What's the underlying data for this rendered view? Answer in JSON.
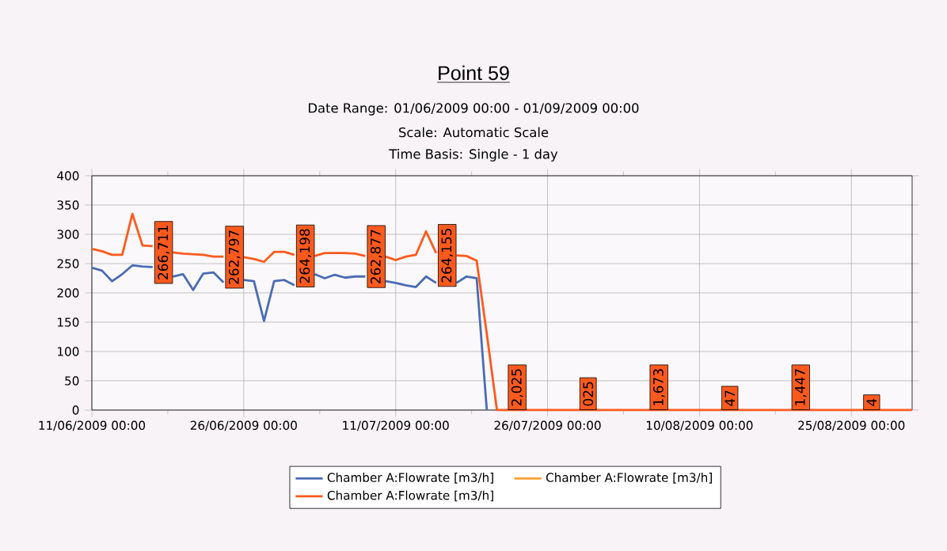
{
  "chart_data": {
    "type": "line",
    "title": "Point 59",
    "subtitle": "Date Range: 01/06/2009 00:00 - 01/09/2009 00:00",
    "annotations": [
      "Scale: Automatic Scale",
      "Time Basis: Single - 1 day",
      {
        "text": "266,711",
        "x": "2009-06-19",
        "y": 269
      },
      {
        "text": "262,797",
        "x": "2009-06-26",
        "y": 261
      },
      {
        "text": "264,198",
        "x": "2009-07-03",
        "y": 263
      },
      {
        "text": "262,877",
        "x": "2009-07-10",
        "y": 262
      },
      {
        "text": "264,155",
        "x": "2009-07-17",
        "y": 264
      },
      {
        "text": "2,025",
        "x": "2009-07-23",
        "y": 0
      },
      {
        "text": "025",
        "x": "2009-07-30",
        "y": 0
      },
      {
        "text": "1,673",
        "x": "2009-08-06",
        "y": 0
      },
      {
        "text": "47",
        "x": "2009-08-13",
        "y": 0
      },
      {
        "text": "1,447",
        "x": "2009-08-20",
        "y": 0
      },
      {
        "text": "4",
        "x": "2009-08-27",
        "y": 0
      }
    ],
    "x": [
      "2009-06-11",
      "2009-06-12",
      "2009-06-13",
      "2009-06-14",
      "2009-06-15",
      "2009-06-16",
      "2009-06-17",
      "2009-06-18",
      "2009-06-19",
      "2009-06-20",
      "2009-06-21",
      "2009-06-22",
      "2009-06-23",
      "2009-06-24",
      "2009-06-25",
      "2009-06-26",
      "2009-06-27",
      "2009-06-28",
      "2009-06-29",
      "2009-06-30",
      "2009-07-01",
      "2009-07-02",
      "2009-07-03",
      "2009-07-04",
      "2009-07-05",
      "2009-07-06",
      "2009-07-07",
      "2009-07-08",
      "2009-07-09",
      "2009-07-10",
      "2009-07-11",
      "2009-07-12",
      "2009-07-13",
      "2009-07-14",
      "2009-07-15",
      "2009-07-16",
      "2009-07-17",
      "2009-07-18",
      "2009-07-19",
      "2009-07-20",
      "2009-07-21",
      "2009-07-22",
      "2009-07-23",
      "2009-07-24",
      "2009-07-25",
      "2009-07-26",
      "2009-07-27",
      "2009-07-28",
      "2009-07-29",
      "2009-07-30",
      "2009-07-31",
      "2009-08-01",
      "2009-08-02",
      "2009-08-03",
      "2009-08-04",
      "2009-08-05",
      "2009-08-06",
      "2009-08-07",
      "2009-08-08",
      "2009-08-09",
      "2009-08-10",
      "2009-08-11",
      "2009-08-12",
      "2009-08-13",
      "2009-08-14",
      "2009-08-15",
      "2009-08-16",
      "2009-08-17",
      "2009-08-18",
      "2009-08-19",
      "2009-08-20",
      "2009-08-21",
      "2009-08-22",
      "2009-08-23",
      "2009-08-24",
      "2009-08-25",
      "2009-08-26",
      "2009-08-27",
      "2009-08-28",
      "2009-08-29",
      "2009-08-30",
      "2009-08-31"
    ],
    "series": [
      {
        "name": "Chamber A:Flowrate [m3/h]",
        "color": "#4a6cb3",
        "values": [
          243,
          238,
          220,
          232,
          247,
          245,
          244,
          null,
          228,
          232,
          205,
          233,
          235,
          218,
          null,
          222,
          220,
          152,
          220,
          222,
          213,
          null,
          232,
          225,
          231,
          226,
          228,
          228,
          null,
          220,
          217,
          213,
          210,
          228,
          217,
          null,
          217,
          228,
          225,
          0,
          null,
          null,
          null,
          null,
          null,
          null,
          null,
          null,
          null,
          null,
          null,
          null,
          null,
          null,
          null,
          null,
          null,
          null,
          null,
          null,
          null,
          null,
          null,
          null,
          null,
          null,
          null,
          null,
          null,
          null,
          null,
          null,
          null,
          null,
          null,
          null,
          null,
          null,
          null,
          null,
          null,
          null
        ]
      },
      {
        "name": "Chamber A:Flowrate [m3/h]",
        "color": "#ffa030",
        "values": [
          null,
          null,
          null,
          null,
          null,
          null,
          null,
          null,
          null,
          null,
          null,
          null,
          null,
          null,
          null,
          null,
          null,
          null,
          null,
          null,
          null,
          null,
          null,
          null,
          null,
          null,
          null,
          null,
          null,
          null,
          null,
          null,
          null,
          null,
          null,
          null,
          null,
          null,
          null,
          null,
          null,
          null,
          null,
          null,
          null,
          null,
          null,
          null,
          null,
          null,
          null,
          null,
          null,
          null,
          null,
          null,
          null,
          null,
          null,
          null,
          null,
          null,
          null,
          null,
          null,
          null,
          null,
          null,
          null,
          null,
          null,
          null,
          null,
          null,
          null,
          null,
          null,
          null,
          null,
          null,
          null,
          null
        ]
      },
      {
        "name": "Chamber A:Flowrate [m3/h]",
        "color": "#ff5a1e",
        "values": [
          275,
          271,
          265,
          265,
          335,
          281,
          280,
          null,
          269,
          267,
          266,
          265,
          262,
          262,
          null,
          261,
          258,
          253,
          270,
          270,
          265,
          null,
          263,
          268,
          268,
          268,
          267,
          263,
          null,
          262,
          256,
          262,
          265,
          305,
          268,
          null,
          264,
          263,
          255,
          130,
          0,
          0,
          0,
          0,
          0,
          0,
          0,
          0,
          0,
          0,
          0,
          0,
          0,
          0,
          0,
          0,
          0,
          0,
          0,
          0,
          0,
          0,
          0,
          0,
          0,
          0,
          0,
          0,
          0,
          0,
          0,
          0,
          0,
          0,
          0,
          0,
          0,
          0,
          0,
          0,
          0,
          0
        ]
      }
    ],
    "xlim": [
      "2009-06-11",
      "2009-08-31"
    ],
    "xticks": [
      {
        "value": "2009-06-11",
        "label": "11/06/2009 00:00"
      },
      {
        "value": "2009-06-26",
        "label": "26/06/2009 00:00"
      },
      {
        "value": "2009-07-11",
        "label": "11/07/2009 00:00"
      },
      {
        "value": "2009-07-26",
        "label": "26/07/2009 00:00"
      },
      {
        "value": "2009-08-10",
        "label": "10/08/2009 00:00"
      },
      {
        "value": "2009-08-25",
        "label": "25/08/2009 00:00"
      }
    ],
    "ylim": [
      0,
      400
    ],
    "yticks": [
      0,
      50,
      100,
      150,
      200,
      250,
      300,
      350,
      400
    ],
    "grid": true,
    "legend": "bottom",
    "marker": "none",
    "line_style": "solid"
  }
}
